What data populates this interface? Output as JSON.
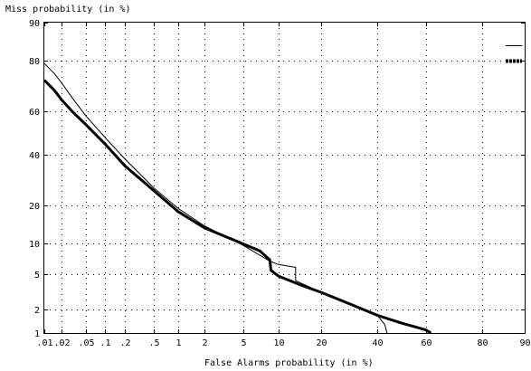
{
  "chart_data": {
    "type": "line",
    "title": "",
    "xlabel": "False Alarms probability (in %)",
    "ylabel": "Miss probability (in %)",
    "x_scale": "normal-deviate",
    "y_scale": "normal-deviate",
    "xlim": [
      0.01,
      90
    ],
    "ylim": [
      1,
      90
    ],
    "x_ticks": [
      0.01,
      0.02,
      0.05,
      0.1,
      0.2,
      0.5,
      1,
      2,
      5,
      10,
      20,
      40,
      60,
      80,
      90
    ],
    "x_tick_labels": [
      ".01",
      ".02",
      ".05",
      ".1",
      ".2",
      ".5",
      "1",
      "2",
      "5",
      "10",
      "20",
      "40",
      "60",
      "80",
      "90"
    ],
    "y_ticks": [
      1,
      2,
      5,
      10,
      20,
      40,
      60,
      80,
      90
    ],
    "y_tick_labels": [
      "1",
      "2",
      "5",
      "10",
      "20",
      "40",
      "60",
      "80",
      "90"
    ],
    "grid": true,
    "legend": {
      "position": "top-right"
    },
    "series": [
      {
        "style": "thin",
        "color": "#000000",
        "points": [
          [
            0.01,
            79
          ],
          [
            0.015,
            75.5
          ],
          [
            0.02,
            72
          ],
          [
            0.03,
            66
          ],
          [
            0.05,
            58
          ],
          [
            0.1,
            48
          ],
          [
            0.2,
            38
          ],
          [
            0.5,
            26
          ],
          [
            1,
            19
          ],
          [
            2,
            14
          ],
          [
            5,
            9.5
          ],
          [
            8.5,
            6.8
          ],
          [
            10,
            6.3
          ],
          [
            13.5,
            5.9
          ],
          [
            13.5,
            4.3
          ],
          [
            20,
            3.2
          ],
          [
            30,
            2.3
          ],
          [
            40,
            1.7
          ],
          [
            43,
            1.3
          ],
          [
            44,
            1
          ]
        ]
      },
      {
        "style": "thick",
        "color": "#000000",
        "points": [
          [
            0.01,
            73
          ],
          [
            0.015,
            69
          ],
          [
            0.02,
            65
          ],
          [
            0.03,
            60
          ],
          [
            0.05,
            54
          ],
          [
            0.1,
            45
          ],
          [
            0.2,
            35
          ],
          [
            0.5,
            25
          ],
          [
            1,
            18
          ],
          [
            2,
            13.5
          ],
          [
            5,
            9.8
          ],
          [
            7,
            8.5
          ],
          [
            8.5,
            7
          ],
          [
            8.7,
            5.5
          ],
          [
            10,
            4.8
          ],
          [
            15,
            3.8
          ],
          [
            20,
            3.2
          ],
          [
            30,
            2.3
          ],
          [
            40,
            1.7
          ],
          [
            50,
            1.35
          ],
          [
            60,
            1.1
          ],
          [
            62,
            1
          ]
        ]
      }
    ]
  }
}
